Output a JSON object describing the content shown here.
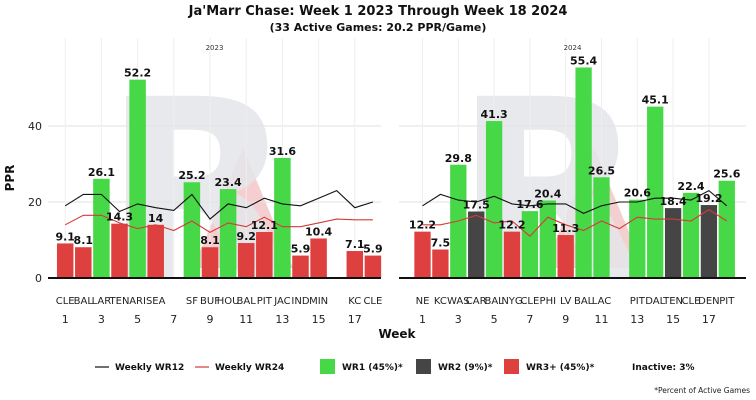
{
  "chart_data": {
    "type": "bar",
    "title": "Ja'Marr Chase: Week 1 2023 Through Week 18 2024",
    "subtitle": "(33 Active Games: 20.2 PPR/Game)",
    "ylabel": "PPR",
    "xlabel": "Week",
    "ylim": [
      0,
      60
    ],
    "yticks": [
      0,
      20,
      40
    ],
    "grid": true,
    "colors": {
      "wr1": "#47d847",
      "wr2": "#454545",
      "wr3": "#de4040",
      "wr12_line": "#111111",
      "wr24_line": "#d63a3a",
      "logo": "#e4e6ea",
      "logo_accent": "#f5cfcf"
    },
    "panels": [
      {
        "year": "2023",
        "week_ticks": [
          "1",
          "3",
          "5",
          "7",
          "9",
          "11",
          "13",
          "15",
          "17"
        ],
        "games": [
          {
            "week": 1,
            "opp": "CLE",
            "ppr": 9.1,
            "tier": "wr3",
            "label": "9.1"
          },
          {
            "week": 2,
            "opp": "BAL",
            "ppr": 8.1,
            "tier": "wr3",
            "label": "8.1"
          },
          {
            "week": 3,
            "opp": "LAR",
            "ppr": 26.1,
            "tier": "wr1",
            "label": "26.1"
          },
          {
            "week": 4,
            "opp": "TEN",
            "ppr": 14.3,
            "tier": "wr3",
            "label": "14.3"
          },
          {
            "week": 5,
            "opp": "ARI",
            "ppr": 52.2,
            "tier": "wr1",
            "label": "52.2"
          },
          {
            "week": 6,
            "opp": "SEA",
            "ppr": 14,
            "tier": "wr3",
            "label": "14"
          },
          {
            "week": 8,
            "opp": "SF",
            "ppr": 25.2,
            "tier": "wr1",
            "label": "25.2"
          },
          {
            "week": 9,
            "opp": "BUF",
            "ppr": 8.1,
            "tier": "wr3",
            "label": "8.1"
          },
          {
            "week": 10,
            "opp": "HOU",
            "ppr": 23.4,
            "tier": "wr1",
            "label": "23.4"
          },
          {
            "week": 11,
            "opp": "BAL",
            "ppr": 9.2,
            "tier": "wr3",
            "label": "9.2"
          },
          {
            "week": 12,
            "opp": "PIT",
            "ppr": 12.1,
            "tier": "wr3",
            "label": "12.1"
          },
          {
            "week": 13,
            "opp": "JAC",
            "ppr": 31.6,
            "tier": "wr1",
            "label": "31.6"
          },
          {
            "week": 14,
            "opp": "IND",
            "ppr": 5.9,
            "tier": "wr3",
            "label": "5.9"
          },
          {
            "week": 15,
            "opp": "MIN",
            "ppr": 10.4,
            "tier": "wr3",
            "label": "10.4"
          },
          {
            "week": 17,
            "opp": "KC",
            "ppr": 7.1,
            "tier": "wr3",
            "label": "7.1"
          },
          {
            "week": 18,
            "opp": "CLE",
            "ppr": 5.9,
            "tier": "wr3",
            "label": "5.9"
          }
        ],
        "wr12": [
          [
            1,
            19
          ],
          [
            2,
            22
          ],
          [
            3,
            22
          ],
          [
            4,
            17.5
          ],
          [
            5,
            19.5
          ],
          [
            6,
            18.5
          ],
          [
            7,
            17.8
          ],
          [
            8,
            22
          ],
          [
            9,
            15.5
          ],
          [
            10,
            19.5
          ],
          [
            11,
            18.5
          ],
          [
            12,
            21
          ],
          [
            13,
            19.5
          ],
          [
            14,
            19
          ],
          [
            15,
            21
          ],
          [
            16,
            23
          ],
          [
            17,
            18.5
          ],
          [
            18,
            20
          ]
        ],
        "wr24": [
          [
            1,
            14
          ],
          [
            2,
            16.5
          ],
          [
            3,
            16.5
          ],
          [
            4,
            14.5
          ],
          [
            5,
            13
          ],
          [
            6,
            14
          ],
          [
            7,
            12.5
          ],
          [
            8,
            15
          ],
          [
            9,
            12
          ],
          [
            10,
            14.5
          ],
          [
            11,
            13.5
          ],
          [
            12,
            16
          ],
          [
            13,
            13.5
          ],
          [
            14,
            13.5
          ],
          [
            15,
            14.5
          ],
          [
            16,
            15.5
          ],
          [
            17,
            15.3
          ],
          [
            18,
            15.3
          ]
        ]
      },
      {
        "year": "2024",
        "week_ticks": [
          "1",
          "3",
          "5",
          "7",
          "9",
          "11",
          "13",
          "15",
          "17"
        ],
        "games": [
          {
            "week": 1,
            "opp": "NE",
            "ppr": 12.2,
            "tier": "wr3",
            "label": "12.2"
          },
          {
            "week": 2,
            "opp": "KC",
            "ppr": 7.5,
            "tier": "wr3",
            "label": "7.5"
          },
          {
            "week": 3,
            "opp": "WAS",
            "ppr": 29.8,
            "tier": "wr1",
            "label": "29.8"
          },
          {
            "week": 4,
            "opp": "CAR",
            "ppr": 17.5,
            "tier": "wr2",
            "label": "17.5"
          },
          {
            "week": 5,
            "opp": "BAL",
            "ppr": 41.3,
            "tier": "wr1",
            "label": "41.3"
          },
          {
            "week": 6,
            "opp": "NYG",
            "ppr": 12.2,
            "tier": "wr3",
            "label": "12.2"
          },
          {
            "week": 7,
            "opp": "CLE",
            "ppr": 17.6,
            "tier": "wr1",
            "label": "17.6"
          },
          {
            "week": 8,
            "opp": "PHI",
            "ppr": 20.4,
            "tier": "wr1",
            "label": "20.4"
          },
          {
            "week": 9,
            "opp": "LV",
            "ppr": 11.3,
            "tier": "wr3",
            "label": "11.3"
          },
          {
            "week": 10,
            "opp": "BAL",
            "ppr": 55.4,
            "tier": "wr1",
            "label": "55.4"
          },
          {
            "week": 11,
            "opp": "LAC",
            "ppr": 26.5,
            "tier": "wr1",
            "label": "26.5"
          },
          {
            "week": 13,
            "opp": "PIT",
            "ppr": 20.6,
            "tier": "wr1",
            "label": "20.6"
          },
          {
            "week": 14,
            "opp": "DAL",
            "ppr": 45.1,
            "tier": "wr1",
            "label": "45.1"
          },
          {
            "week": 15,
            "opp": "TEN",
            "ppr": 18.4,
            "tier": "wr2",
            "label": "18.4"
          },
          {
            "week": 16,
            "opp": "CLE",
            "ppr": 22.4,
            "tier": "wr1",
            "label": "22.4"
          },
          {
            "week": 17,
            "opp": "DEN",
            "ppr": 19.2,
            "tier": "wr2",
            "label": "19.2"
          },
          {
            "week": 18,
            "opp": "PIT",
            "ppr": 25.6,
            "tier": "wr1",
            "label": "25.6"
          }
        ],
        "wr12": [
          [
            1,
            19
          ],
          [
            2,
            22
          ],
          [
            3,
            20.5
          ],
          [
            4,
            20
          ],
          [
            5,
            21.5
          ],
          [
            6,
            19.5
          ],
          [
            7,
            19
          ],
          [
            8,
            19.5
          ],
          [
            9,
            19.5
          ],
          [
            10,
            17
          ],
          [
            11,
            19
          ],
          [
            12,
            20
          ],
          [
            13,
            20
          ],
          [
            14,
            21
          ],
          [
            15,
            21
          ],
          [
            16,
            20.5
          ],
          [
            17,
            23
          ],
          [
            18,
            19
          ]
        ],
        "wr24": [
          [
            1,
            14
          ],
          [
            2,
            14
          ],
          [
            3,
            15
          ],
          [
            4,
            16.5
          ],
          [
            5,
            14.5
          ],
          [
            6,
            15
          ],
          [
            7,
            11
          ],
          [
            8,
            16
          ],
          [
            9,
            14
          ],
          [
            10,
            12.5
          ],
          [
            11,
            15
          ],
          [
            12,
            13
          ],
          [
            13,
            16
          ],
          [
            14,
            15.5
          ],
          [
            15,
            15.5
          ],
          [
            16,
            15
          ],
          [
            17,
            18
          ],
          [
            18,
            15
          ]
        ]
      }
    ],
    "legend": {
      "items": [
        {
          "key": "wr12",
          "kind": "line",
          "label": "Weekly WR12"
        },
        {
          "key": "wr24",
          "kind": "line",
          "label": "Weekly WR24"
        },
        {
          "key": "wr1",
          "kind": "box",
          "label": "WR1 (45%)*"
        },
        {
          "key": "wr2",
          "kind": "box",
          "label": "WR2 (9%)*"
        },
        {
          "key": "wr3",
          "kind": "box",
          "label": "WR3+ (45%)*"
        },
        {
          "key": "inactive",
          "kind": "text",
          "label": "Inactive: 3%"
        }
      ]
    },
    "footnote": "*Percent of Active Games"
  }
}
